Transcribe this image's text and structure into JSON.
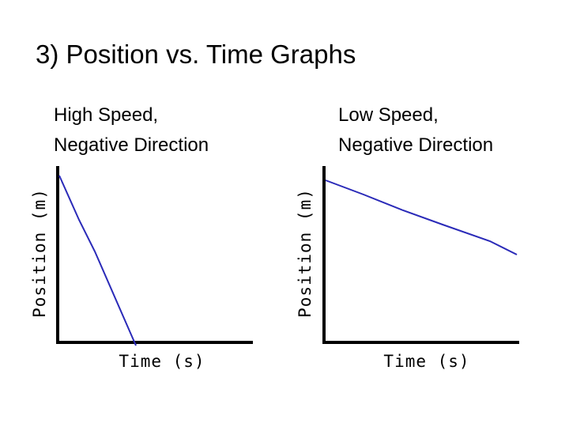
{
  "header": {
    "title": "3) Position vs. Time Graphs"
  },
  "graphs": [
    {
      "caption_lines": [
        "High Speed,",
        "Negative Direction"
      ],
      "x_label": "Time (s)",
      "y_label": "Position (m)"
    },
    {
      "caption_lines": [
        "Low Speed,",
        "Negative Direction"
      ],
      "x_label": "Time (s)",
      "y_label": "Position (m)"
    }
  ]
}
